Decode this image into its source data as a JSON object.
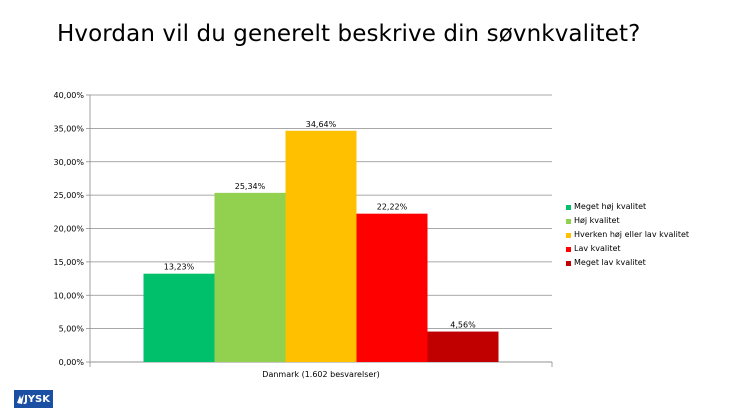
{
  "title": "Hvordan vil du generelt beskrive din søvnkvalitet?",
  "logo_text": "JYSK",
  "chart_data": {
    "type": "bar",
    "categories": [
      "Danmark (1.602 besvarelser)"
    ],
    "series": [
      {
        "name": "Meget høj kvalitet",
        "values": [
          13.23
        ],
        "label": "13,23%",
        "color": "#00c06b"
      },
      {
        "name": "Høj kvalitet",
        "values": [
          25.34
        ],
        "label": "25,34%",
        "color": "#92d050"
      },
      {
        "name": "Hverken høj eller lav kvalitet",
        "values": [
          34.64
        ],
        "label": "34,64%",
        "color": "#ffc000"
      },
      {
        "name": "Lav kvalitet",
        "values": [
          22.22
        ],
        "label": "22,22%",
        "color": "#ff0000"
      },
      {
        "name": "Meget lav kvalitet",
        "values": [
          4.56
        ],
        "label": "4,56%",
        "color": "#c00000"
      }
    ],
    "ylim": [
      0,
      40
    ],
    "yticks": [
      "0,00%",
      "5,00%",
      "10,00%",
      "15,00%",
      "20,00%",
      "25,00%",
      "30,00%",
      "35,00%",
      "40,00%"
    ],
    "grid": true,
    "legend": "right"
  }
}
